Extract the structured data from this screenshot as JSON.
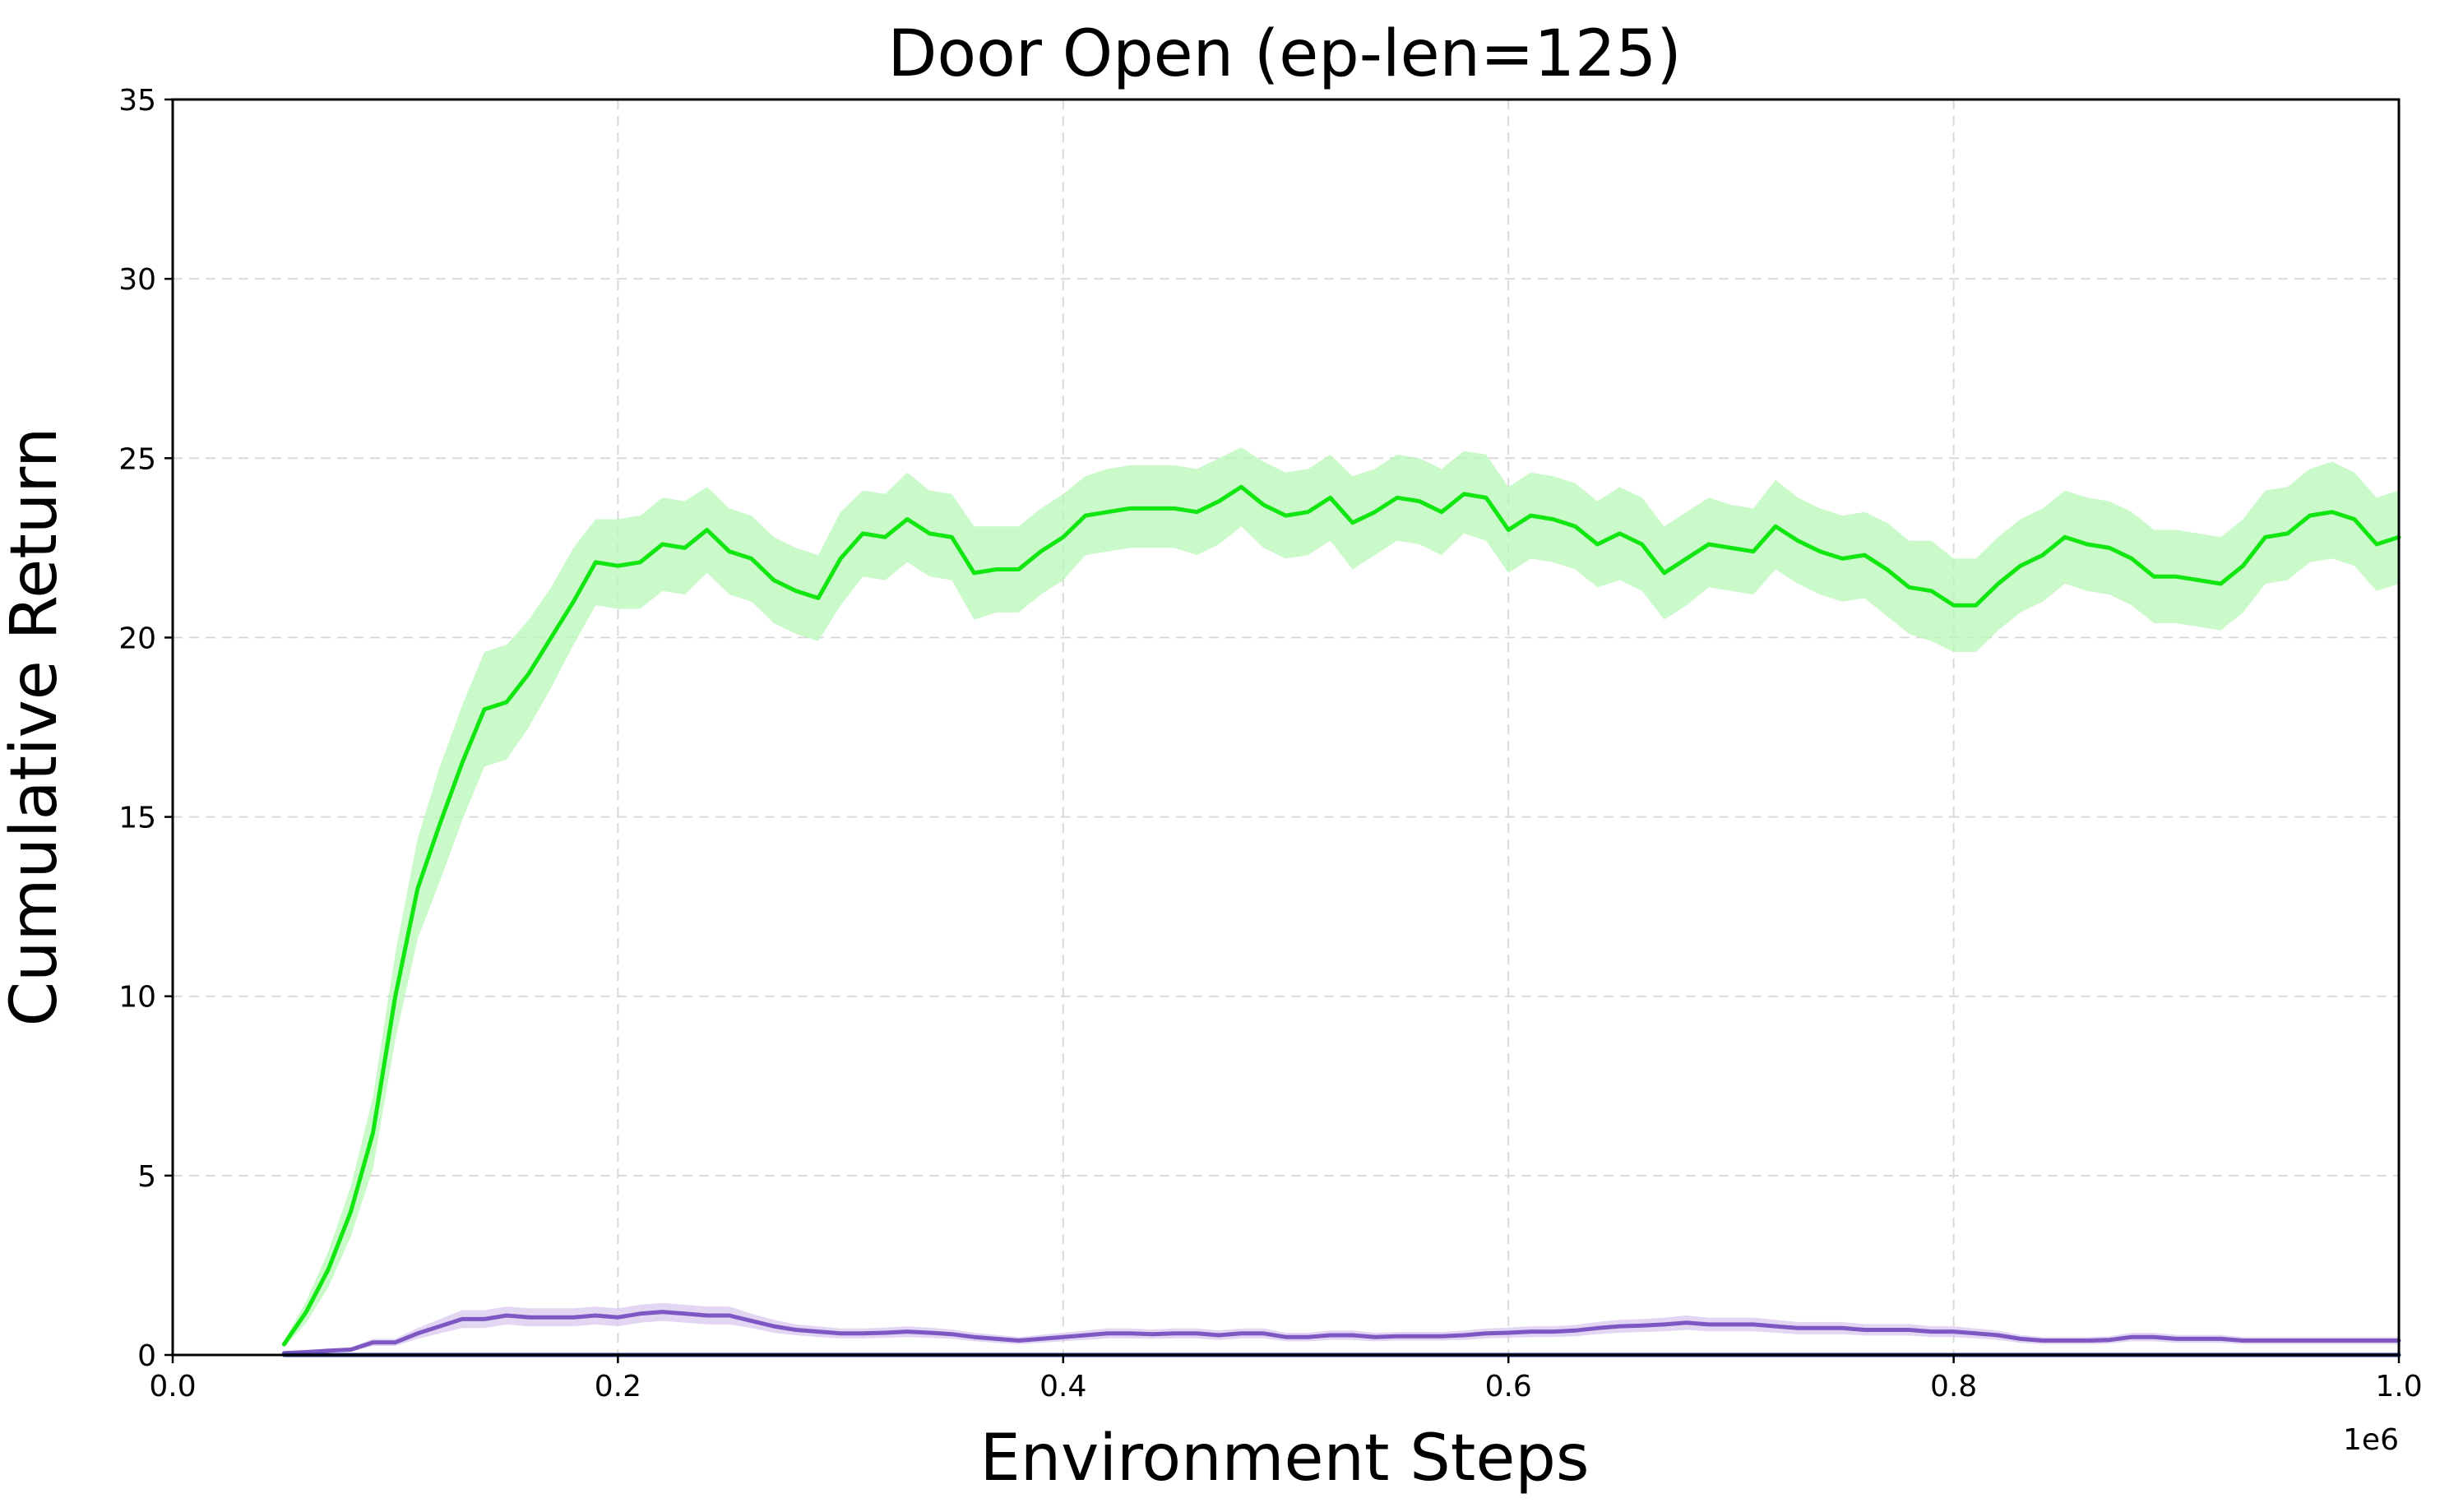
{
  "chart_data": {
    "type": "line",
    "title": "Door Open (ep-len=125)",
    "xlabel": "Environment Steps",
    "ylabel": "Cumulative Return",
    "x_offset_label": "1e6",
    "xlim": [
      0.0,
      1.0
    ],
    "ylim": [
      0,
      35
    ],
    "xticks": [
      "0.0",
      "0.2",
      "0.4",
      "0.6",
      "0.8",
      "1.0"
    ],
    "yticks": [
      "0",
      "5",
      "10",
      "15",
      "20",
      "25",
      "30",
      "35"
    ],
    "grid": true,
    "legend": "none",
    "series": [
      {
        "color": "#11e611",
        "band_color": "#b8f7b8",
        "x": [
          0.05,
          0.06,
          0.07,
          0.08,
          0.09,
          0.1,
          0.11,
          0.12,
          0.13,
          0.14,
          0.15,
          0.16,
          0.17,
          0.18,
          0.19,
          0.2,
          0.21,
          0.22,
          0.23,
          0.24,
          0.25,
          0.26,
          0.27,
          0.28,
          0.29,
          0.3,
          0.31,
          0.32,
          0.33,
          0.34,
          0.35,
          0.36,
          0.37,
          0.38,
          0.39,
          0.4,
          0.41,
          0.42,
          0.43,
          0.44,
          0.45,
          0.46,
          0.47,
          0.48,
          0.49,
          0.5,
          0.51,
          0.52,
          0.53,
          0.54,
          0.55,
          0.56,
          0.57,
          0.58,
          0.59,
          0.6,
          0.61,
          0.62,
          0.63,
          0.64,
          0.65,
          0.66,
          0.67,
          0.68,
          0.69,
          0.7,
          0.71,
          0.72,
          0.73,
          0.74,
          0.75,
          0.76,
          0.77,
          0.78,
          0.79,
          0.8,
          0.81,
          0.82,
          0.83,
          0.84,
          0.85,
          0.86,
          0.87,
          0.88,
          0.89,
          0.9,
          0.91,
          0.92,
          0.93,
          0.94,
          0.95,
          0.96,
          0.97,
          0.98,
          0.99,
          1.0
        ],
        "mean": [
          0.3,
          1.2,
          2.4,
          4.0,
          6.2,
          10.0,
          13.0,
          14.8,
          16.5,
          18.0,
          18.2,
          19.0,
          20.0,
          21.0,
          22.1,
          22.0,
          22.1,
          22.6,
          22.5,
          23.0,
          22.4,
          22.2,
          21.6,
          21.3,
          21.1,
          22.2,
          22.9,
          22.8,
          23.3,
          22.9,
          22.8,
          21.8,
          21.9,
          21.9,
          22.4,
          22.8,
          23.4,
          23.5,
          23.6,
          23.6,
          23.6,
          23.5,
          23.8,
          24.2,
          23.7,
          23.4,
          23.5,
          23.9,
          23.2,
          23.5,
          23.9,
          23.8,
          23.5,
          24.0,
          23.9,
          23.0,
          23.4,
          23.3,
          23.1,
          22.6,
          22.9,
          22.6,
          21.8,
          22.2,
          22.6,
          22.5,
          22.4,
          23.1,
          22.7,
          22.4,
          22.2,
          22.3,
          21.9,
          21.4,
          21.3,
          20.9,
          20.9,
          21.5,
          22.0,
          22.3,
          22.8,
          22.6,
          22.5,
          22.2,
          21.7,
          21.7,
          21.6,
          21.5,
          22.0,
          22.8,
          22.9,
          23.4,
          23.5,
          23.3,
          22.6,
          22.8
        ],
        "lower": [
          0.2,
          0.9,
          1.9,
          3.3,
          5.2,
          8.8,
          11.6,
          13.2,
          14.9,
          16.4,
          16.6,
          17.5,
          18.6,
          19.8,
          20.9,
          20.8,
          20.8,
          21.3,
          21.2,
          21.8,
          21.2,
          21.0,
          20.4,
          20.1,
          19.9,
          20.9,
          21.7,
          21.6,
          22.1,
          21.7,
          21.6,
          20.5,
          20.7,
          20.7,
          21.2,
          21.6,
          22.3,
          22.4,
          22.5,
          22.5,
          22.5,
          22.3,
          22.6,
          23.1,
          22.5,
          22.2,
          22.3,
          22.7,
          21.9,
          22.3,
          22.7,
          22.6,
          22.3,
          22.9,
          22.7,
          21.8,
          22.2,
          22.1,
          21.9,
          21.4,
          21.6,
          21.3,
          20.5,
          20.9,
          21.4,
          21.3,
          21.2,
          21.9,
          21.5,
          21.2,
          21.0,
          21.1,
          20.6,
          20.1,
          19.9,
          19.6,
          19.6,
          20.2,
          20.7,
          21.0,
          21.5,
          21.3,
          21.2,
          20.9,
          20.4,
          20.4,
          20.3,
          20.2,
          20.7,
          21.5,
          21.6,
          22.1,
          22.2,
          22.0,
          21.3,
          21.5
        ],
        "upper": [
          0.4,
          1.5,
          2.9,
          4.7,
          7.2,
          11.2,
          14.4,
          16.4,
          18.1,
          19.6,
          19.8,
          20.5,
          21.4,
          22.5,
          23.3,
          23.3,
          23.4,
          23.9,
          23.8,
          24.2,
          23.6,
          23.4,
          22.8,
          22.5,
          22.3,
          23.5,
          24.1,
          24.0,
          24.6,
          24.1,
          24.0,
          23.1,
          23.1,
          23.1,
          23.6,
          24.0,
          24.5,
          24.7,
          24.8,
          24.8,
          24.8,
          24.7,
          25.0,
          25.3,
          24.9,
          24.6,
          24.7,
          25.1,
          24.5,
          24.7,
          25.1,
          25.0,
          24.7,
          25.2,
          25.1,
          24.2,
          24.6,
          24.5,
          24.3,
          23.8,
          24.2,
          23.9,
          23.1,
          23.5,
          23.9,
          23.7,
          23.6,
          24.4,
          23.9,
          23.6,
          23.4,
          23.5,
          23.2,
          22.7,
          22.7,
          22.2,
          22.2,
          22.8,
          23.3,
          23.6,
          24.1,
          23.9,
          23.8,
          23.5,
          23.0,
          23.0,
          22.9,
          22.8,
          23.3,
          24.1,
          24.2,
          24.7,
          24.9,
          24.6,
          23.9,
          24.1
        ]
      },
      {
        "color": "#7e57c2",
        "band_color": "#d8c8ef",
        "x": [
          0.05,
          0.06,
          0.07,
          0.08,
          0.09,
          0.1,
          0.11,
          0.12,
          0.13,
          0.14,
          0.15,
          0.16,
          0.17,
          0.18,
          0.19,
          0.2,
          0.21,
          0.22,
          0.23,
          0.24,
          0.25,
          0.26,
          0.27,
          0.28,
          0.29,
          0.3,
          0.31,
          0.32,
          0.33,
          0.34,
          0.35,
          0.36,
          0.37,
          0.38,
          0.39,
          0.4,
          0.41,
          0.42,
          0.43,
          0.44,
          0.45,
          0.46,
          0.47,
          0.48,
          0.49,
          0.5,
          0.51,
          0.52,
          0.53,
          0.54,
          0.55,
          0.56,
          0.57,
          0.58,
          0.59,
          0.6,
          0.61,
          0.62,
          0.63,
          0.64,
          0.65,
          0.66,
          0.67,
          0.68,
          0.69,
          0.7,
          0.71,
          0.72,
          0.73,
          0.74,
          0.75,
          0.76,
          0.77,
          0.78,
          0.79,
          0.8,
          0.81,
          0.82,
          0.83,
          0.84,
          0.85,
          0.86,
          0.87,
          0.88,
          0.89,
          0.9,
          0.91,
          0.92,
          0.93,
          0.94,
          0.95,
          0.96,
          0.97,
          0.98,
          0.99,
          1.0
        ],
        "mean": [
          0.05,
          0.08,
          0.12,
          0.15,
          0.35,
          0.35,
          0.6,
          0.8,
          1.0,
          1.0,
          1.1,
          1.05,
          1.05,
          1.05,
          1.1,
          1.05,
          1.15,
          1.2,
          1.15,
          1.1,
          1.1,
          0.95,
          0.8,
          0.7,
          0.65,
          0.6,
          0.6,
          0.62,
          0.65,
          0.62,
          0.58,
          0.5,
          0.45,
          0.4,
          0.45,
          0.5,
          0.55,
          0.6,
          0.6,
          0.58,
          0.6,
          0.6,
          0.55,
          0.6,
          0.6,
          0.5,
          0.5,
          0.55,
          0.55,
          0.5,
          0.52,
          0.52,
          0.52,
          0.55,
          0.6,
          0.62,
          0.65,
          0.65,
          0.68,
          0.75,
          0.8,
          0.82,
          0.85,
          0.9,
          0.85,
          0.85,
          0.85,
          0.8,
          0.75,
          0.75,
          0.75,
          0.7,
          0.7,
          0.7,
          0.65,
          0.65,
          0.6,
          0.55,
          0.45,
          0.4,
          0.4,
          0.4,
          0.42,
          0.5,
          0.5,
          0.45,
          0.45,
          0.45,
          0.4,
          0.4,
          0.4,
          0.4,
          0.4,
          0.4,
          0.4,
          0.4
        ],
        "lower": [
          0.02,
          0.04,
          0.07,
          0.09,
          0.25,
          0.25,
          0.45,
          0.6,
          0.75,
          0.75,
          0.85,
          0.8,
          0.8,
          0.8,
          0.85,
          0.8,
          0.9,
          0.95,
          0.9,
          0.85,
          0.85,
          0.75,
          0.62,
          0.55,
          0.5,
          0.46,
          0.46,
          0.48,
          0.5,
          0.48,
          0.45,
          0.38,
          0.34,
          0.3,
          0.34,
          0.38,
          0.42,
          0.46,
          0.46,
          0.45,
          0.46,
          0.46,
          0.42,
          0.46,
          0.46,
          0.38,
          0.38,
          0.42,
          0.42,
          0.38,
          0.4,
          0.4,
          0.4,
          0.42,
          0.46,
          0.48,
          0.5,
          0.5,
          0.52,
          0.58,
          0.62,
          0.64,
          0.66,
          0.7,
          0.66,
          0.66,
          0.66,
          0.62,
          0.58,
          0.58,
          0.58,
          0.54,
          0.54,
          0.54,
          0.5,
          0.5,
          0.46,
          0.42,
          0.34,
          0.3,
          0.3,
          0.3,
          0.32,
          0.38,
          0.38,
          0.34,
          0.34,
          0.34,
          0.3,
          0.3,
          0.3,
          0.3,
          0.3,
          0.3,
          0.3,
          0.3
        ],
        "upper": [
          0.08,
          0.12,
          0.17,
          0.21,
          0.45,
          0.45,
          0.75,
          1.0,
          1.25,
          1.25,
          1.35,
          1.3,
          1.3,
          1.3,
          1.35,
          1.3,
          1.4,
          1.45,
          1.4,
          1.35,
          1.35,
          1.15,
          0.98,
          0.85,
          0.8,
          0.74,
          0.74,
          0.76,
          0.8,
          0.76,
          0.71,
          0.62,
          0.56,
          0.5,
          0.56,
          0.62,
          0.68,
          0.74,
          0.74,
          0.71,
          0.74,
          0.74,
          0.68,
          0.74,
          0.74,
          0.62,
          0.62,
          0.68,
          0.68,
          0.62,
          0.64,
          0.64,
          0.64,
          0.68,
          0.74,
          0.76,
          0.8,
          0.8,
          0.84,
          0.92,
          0.98,
          1.0,
          1.04,
          1.1,
          1.04,
          1.04,
          1.04,
          0.98,
          0.92,
          0.92,
          0.92,
          0.86,
          0.86,
          0.86,
          0.8,
          0.8,
          0.74,
          0.68,
          0.56,
          0.5,
          0.5,
          0.5,
          0.52,
          0.62,
          0.62,
          0.56,
          0.56,
          0.56,
          0.5,
          0.5,
          0.5,
          0.5,
          0.5,
          0.5,
          0.5,
          0.5
        ]
      },
      {
        "color": "#1f3a93",
        "band_color": "#c9d3ee",
        "x": [
          0.05,
          1.0
        ],
        "mean": [
          0.0,
          0.0
        ],
        "lower": [
          0.0,
          0.0
        ],
        "upper": [
          0.0,
          0.0
        ]
      }
    ]
  }
}
